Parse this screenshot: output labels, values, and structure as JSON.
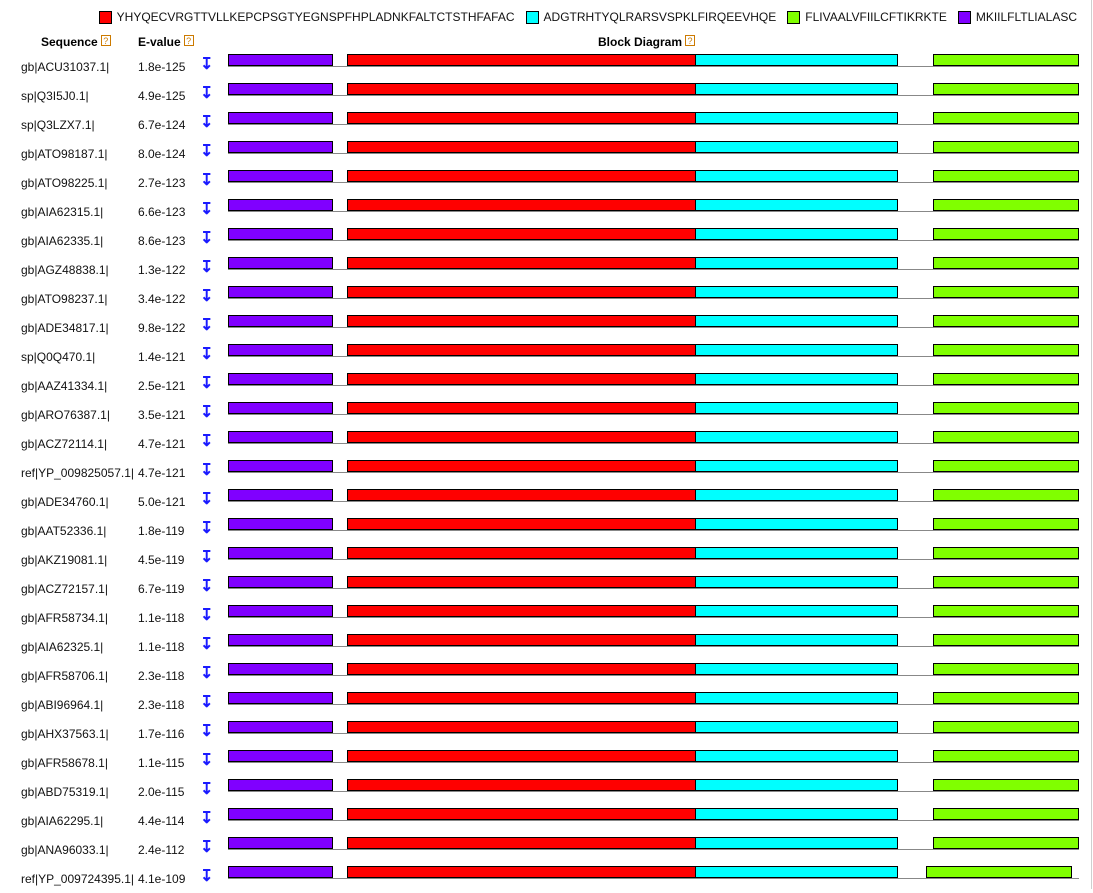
{
  "legend": [
    {
      "label": "YHYQECVRGTTVLLKEPCPSGTYEGNSPFHPLADNKFALTCTSTHFAFAC",
      "color": "#ff0000"
    },
    {
      "label": "ADGTRHTYQLRARSVSPKLFIRQEEVHQE",
      "color": "#00ffff"
    },
    {
      "label": "FLIVAALVFIILCFTIKRKTE",
      "color": "#80ff00"
    },
    {
      "label": "MKIILFLTLIALASC",
      "color": "#8000ff"
    }
  ],
  "headers": {
    "sequence": "Sequence",
    "evalue": "E-value",
    "block_diagram": "Block Diagram",
    "help": "?"
  },
  "expand_glyph": "↧",
  "rows": [
    {
      "sequence": "gb|ACU31037.1|",
      "evalue": "1.8e-125"
    },
    {
      "sequence": "sp|Q3I5J0.1|",
      "evalue": "4.9e-125"
    },
    {
      "sequence": "sp|Q3LZX7.1|",
      "evalue": "6.7e-124"
    },
    {
      "sequence": "gb|ATO98187.1|",
      "evalue": "8.0e-124"
    },
    {
      "sequence": "gb|ATO98225.1|",
      "evalue": "2.7e-123"
    },
    {
      "sequence": "gb|AIA62315.1|",
      "evalue": "6.6e-123"
    },
    {
      "sequence": "gb|AIA62335.1|",
      "evalue": "8.6e-123"
    },
    {
      "sequence": "gb|AGZ48838.1|",
      "evalue": "1.3e-122"
    },
    {
      "sequence": "gb|ATO98237.1|",
      "evalue": "3.4e-122"
    },
    {
      "sequence": "gb|ADE34817.1|",
      "evalue": "9.8e-122"
    },
    {
      "sequence": "sp|Q0Q470.1|",
      "evalue": "1.4e-121"
    },
    {
      "sequence": "gb|AAZ41334.1|",
      "evalue": "2.5e-121"
    },
    {
      "sequence": "gb|ARO76387.1|",
      "evalue": "3.5e-121"
    },
    {
      "sequence": "gb|ACZ72114.1|",
      "evalue": "4.7e-121"
    },
    {
      "sequence": "ref|YP_009825057.1|",
      "evalue": "4.7e-121"
    },
    {
      "sequence": "gb|ADE34760.1|",
      "evalue": "5.0e-121"
    },
    {
      "sequence": "gb|AAT52336.1|",
      "evalue": "1.8e-119"
    },
    {
      "sequence": "gb|AKZ19081.1|",
      "evalue": "4.5e-119"
    },
    {
      "sequence": "gb|ACZ72157.1|",
      "evalue": "6.7e-119"
    },
    {
      "sequence": "gb|AFR58734.1|",
      "evalue": "1.1e-118"
    },
    {
      "sequence": "gb|AIA62325.1|",
      "evalue": "1.1e-118"
    },
    {
      "sequence": "gb|AFR58706.1|",
      "evalue": "2.3e-118"
    },
    {
      "sequence": "gb|ABI96964.1|",
      "evalue": "2.3e-118"
    },
    {
      "sequence": "gb|AHX37563.1|",
      "evalue": "1.7e-116"
    },
    {
      "sequence": "gb|AFR58678.1|",
      "evalue": "1.1e-115"
    },
    {
      "sequence": "gb|ABD75319.1|",
      "evalue": "2.0e-115"
    },
    {
      "sequence": "gb|AIA62295.1|",
      "evalue": "4.4e-114"
    },
    {
      "sequence": "gb|ANA96033.1|",
      "evalue": "2.4e-112"
    },
    {
      "sequence": "ref|YP_009724395.1|",
      "evalue": "4.1e-109",
      "variant": "shifted"
    }
  ]
}
